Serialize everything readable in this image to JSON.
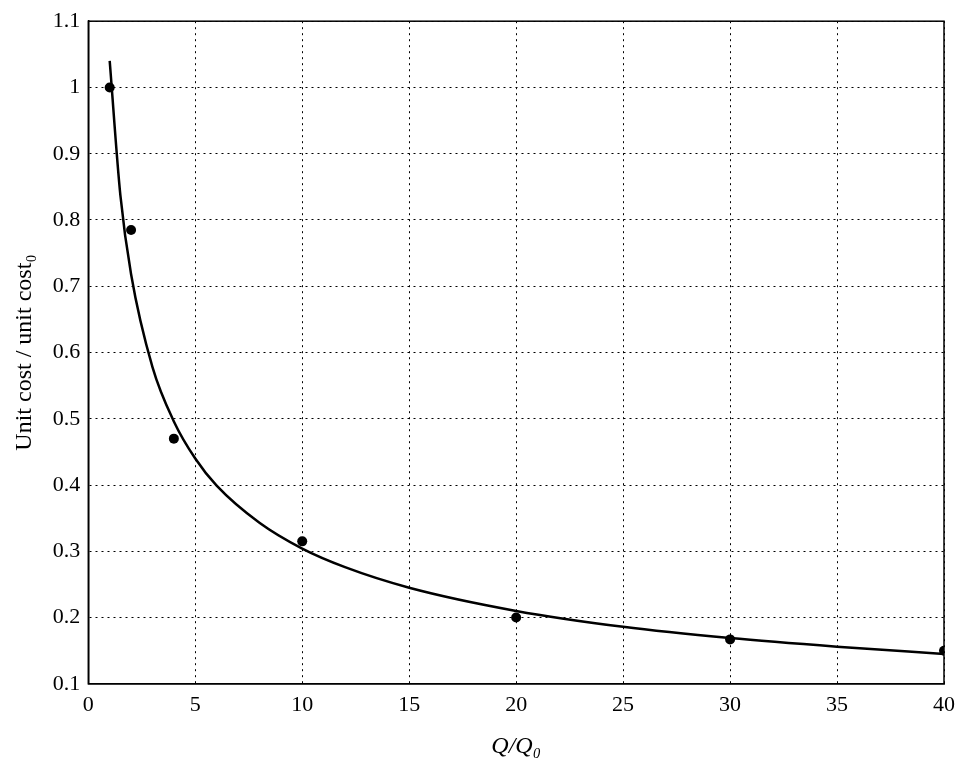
{
  "chart_data": {
    "type": "scatter",
    "x_label": "Q/Q₀",
    "y_label": "Unit cost / unit cost₀",
    "xlim": [
      0,
      40
    ],
    "xticks": [
      0,
      5,
      10,
      15,
      20,
      25,
      30,
      35,
      40
    ],
    "ylim": [
      0.1,
      1.1
    ],
    "yticks": [
      0.1,
      0.2,
      0.3,
      0.4,
      0.5,
      0.6,
      0.7,
      0.8,
      0.9,
      1,
      1.1
    ],
    "grid": true,
    "series": [
      {
        "type": "line",
        "color": "#000000",
        "line_style": "solid",
        "x": [
          1,
          1.5,
          2,
          3,
          4,
          5,
          6,
          8,
          10,
          12,
          15,
          20,
          25,
          30,
          35,
          40
        ],
        "values": [
          1.04,
          0.837,
          0.718,
          0.578,
          0.496,
          0.44,
          0.399,
          0.343,
          0.304,
          0.276,
          0.245,
          0.21,
          0.186,
          0.169,
          0.156,
          0.145
        ]
      },
      {
        "type": "scatter",
        "color": "#000000",
        "marker": "circle",
        "x": [
          1,
          2,
          4,
          10,
          20,
          30,
          40
        ],
        "values": [
          1.0,
          0.785,
          0.47,
          0.315,
          0.2,
          0.167,
          0.15
        ]
      }
    ]
  }
}
